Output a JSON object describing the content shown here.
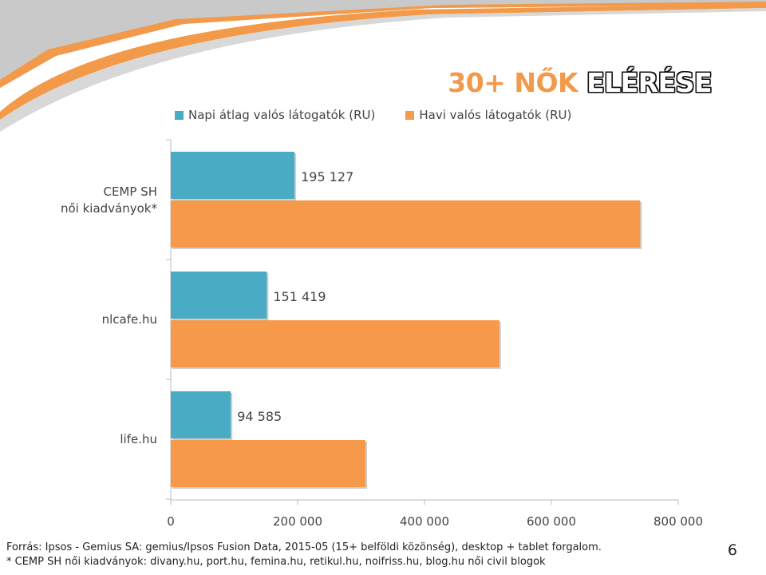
{
  "title": {
    "part1": "30+ NŐK",
    "part2": "ELÉRÉSE"
  },
  "colors": {
    "series1": "#4aabc4",
    "series2": "#f6994b",
    "decor": "#cfcfcf",
    "decor_dark": "#a8a8a8"
  },
  "chart_data": {
    "type": "bar",
    "orientation": "horizontal",
    "categories": [
      "CEMP SH|női kiadványok*",
      "nlcafe.hu",
      "life.hu"
    ],
    "series": [
      {
        "name": "Napi átlag valós látogatók (RU)",
        "values": [
          195127,
          151419,
          94585
        ],
        "labels": [
          "195 127",
          "151 419",
          "94 585"
        ]
      },
      {
        "name": "Havi valós látogatók (RU)",
        "values": [
          740000,
          518000,
          307000
        ]
      }
    ],
    "xlim": [
      0,
      800000
    ],
    "xticks": [
      0,
      200000,
      400000,
      600000,
      800000
    ],
    "xtick_labels": [
      "0",
      "200 000",
      "400 000",
      "600 000",
      "800 000"
    ],
    "legend": "top",
    "grid": false
  },
  "footer": {
    "line1": "Forrás: Ipsos - Gemius SA: gemius/Ipsos Fusion Data, 2015-05 (15+ belföldi közönség), desktop + tablet forgalom.",
    "line2": "* CEMP SH női kiadványok: divany.hu, port.hu, femina.hu, retikul.hu, noifriss.hu, blog.hu női civil blogok"
  },
  "page_number": "6"
}
